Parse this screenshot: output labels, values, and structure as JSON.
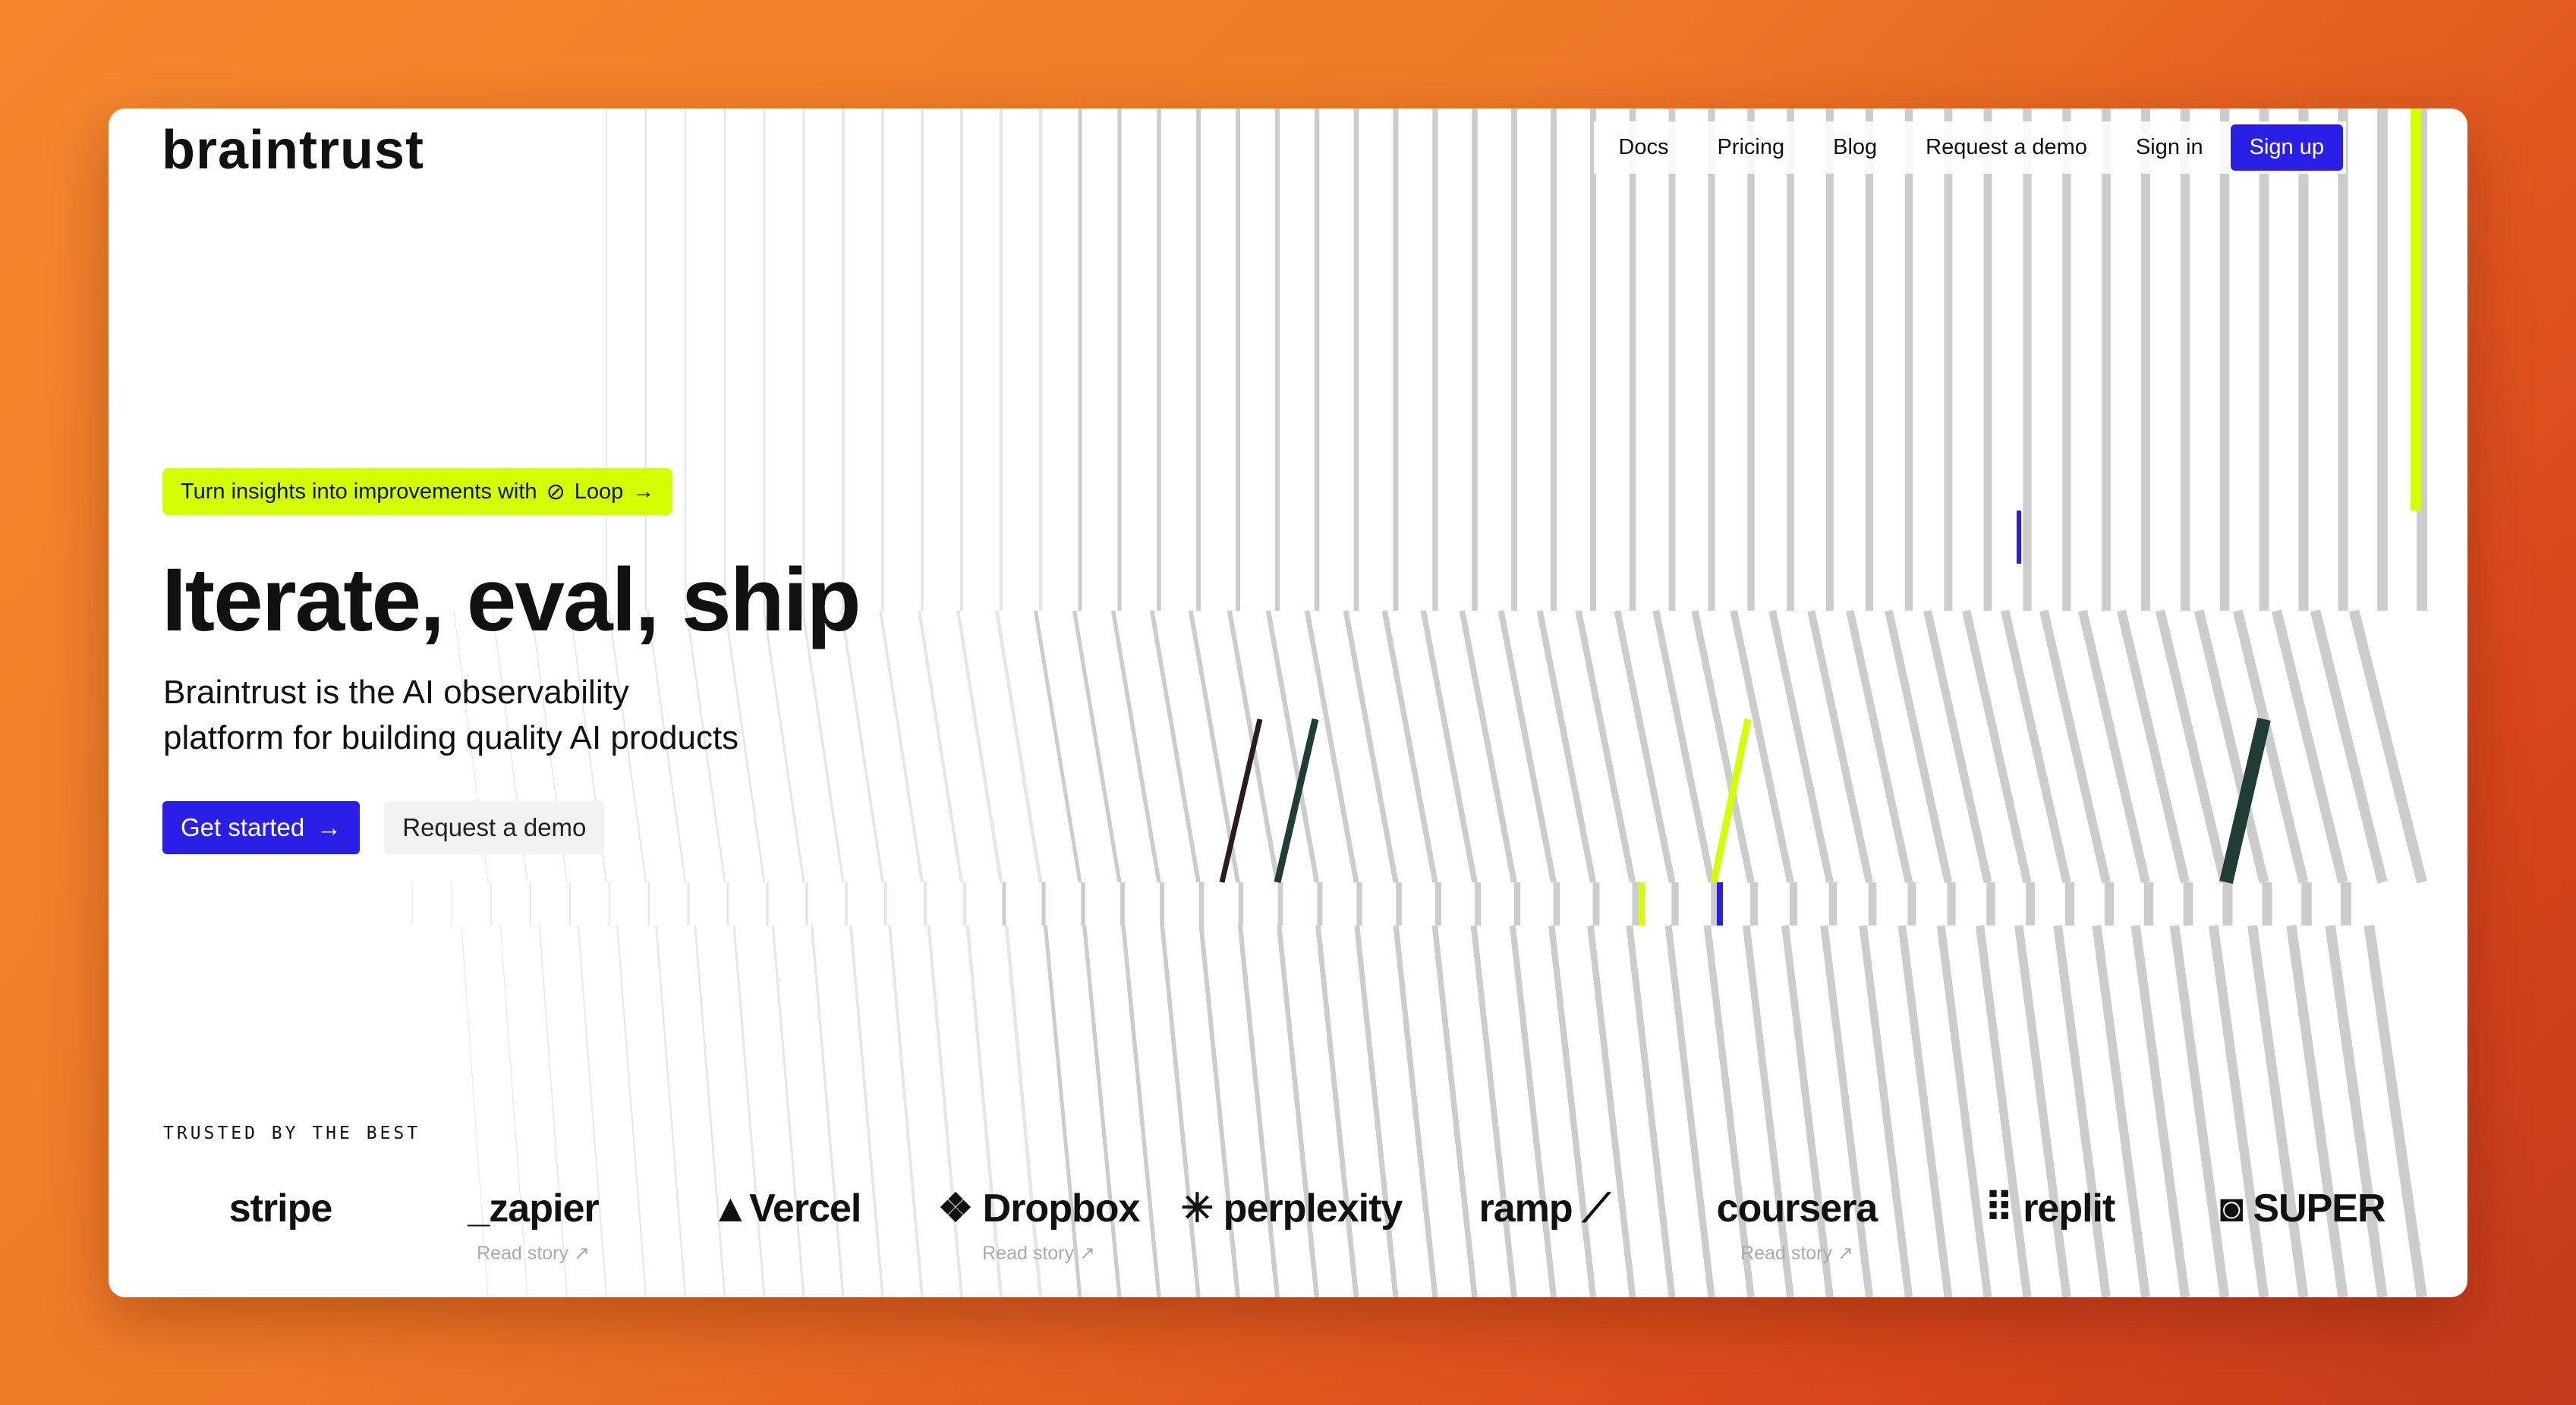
{
  "brand": {
    "name": "braintrust"
  },
  "nav": {
    "items": [
      "Docs",
      "Pricing",
      "Blog",
      "Request a demo",
      "Sign in"
    ],
    "signup": "Sign up"
  },
  "hero": {
    "banner": {
      "text": "Turn insights into improvements with",
      "link": "Loop",
      "icon": "loop-icon",
      "arrow": "→"
    },
    "title": "Iterate, eval, ship",
    "subtitle_1": "Braintrust is the AI observability",
    "subtitle_2": "platform for building quality AI products",
    "cta_primary": "Get started",
    "cta_arrow": "→",
    "cta_secondary": "Request a demo"
  },
  "trusted": {
    "label": "TRUSTED BY THE BEST",
    "logos": [
      {
        "name": "stripe",
        "story": ""
      },
      {
        "name": "_zapier",
        "story": "Read story ↗"
      },
      {
        "name": "▲Vercel",
        "story": ""
      },
      {
        "name": "❖ Dropbox",
        "story": "Read story ↗"
      },
      {
        "name": "✳ perplexity",
        "story": ""
      },
      {
        "name": "ramp ⟋",
        "story": ""
      },
      {
        "name": "coursera",
        "story": "Read story ↗"
      },
      {
        "name": "⠿ replit",
        "story": ""
      },
      {
        "name": "◙ SUPER",
        "story": ""
      }
    ]
  },
  "colors": {
    "accent": "#2a1fe6",
    "lime": "#d4ff00",
    "stripe": "#cccccc",
    "dark": "#1f3d36"
  }
}
